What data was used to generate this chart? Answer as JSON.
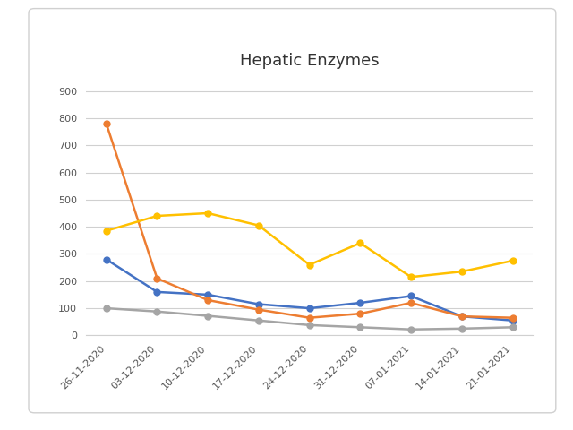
{
  "title": "Hepatic Enzymes",
  "x_labels": [
    "26-11-2020",
    "03-12-2020",
    "10-12-2020",
    "17-12-2020",
    "24-12-2020",
    "31-12-2020",
    "07-01-2021",
    "14-01-2021",
    "21-01-2021"
  ],
  "series": {
    "SGOT": {
      "values": [
        280,
        160,
        150,
        115,
        100,
        120,
        145,
        70,
        55
      ],
      "color": "#4472C4",
      "marker": "o"
    },
    "SGPT": {
      "values": [
        780,
        210,
        130,
        95,
        65,
        80,
        120,
        70,
        65
      ],
      "color": "#ED7D31",
      "marker": "o"
    },
    "GGTP": {
      "values": [
        100,
        88,
        72,
        55,
        38,
        30,
        22,
        25,
        30
      ],
      "color": "#A5A5A5",
      "marker": "o"
    },
    "ALP": {
      "values": [
        385,
        440,
        450,
        405,
        260,
        340,
        215,
        235,
        275
      ],
      "color": "#FFC000",
      "marker": "o"
    }
  },
  "ylim": [
    0,
    950
  ],
  "yticks": [
    0,
    100,
    200,
    300,
    400,
    500,
    600,
    700,
    800,
    900
  ],
  "outer_bg_color": "#FFFFFF",
  "inner_bg_color": "#FFFFFF",
  "box_edge_color": "#D0D0D0",
  "grid_color": "#D0D0D0",
  "title_fontsize": 13,
  "tick_fontsize": 8,
  "legend_fontsize": 8,
  "line_width": 1.8,
  "marker_size": 5
}
